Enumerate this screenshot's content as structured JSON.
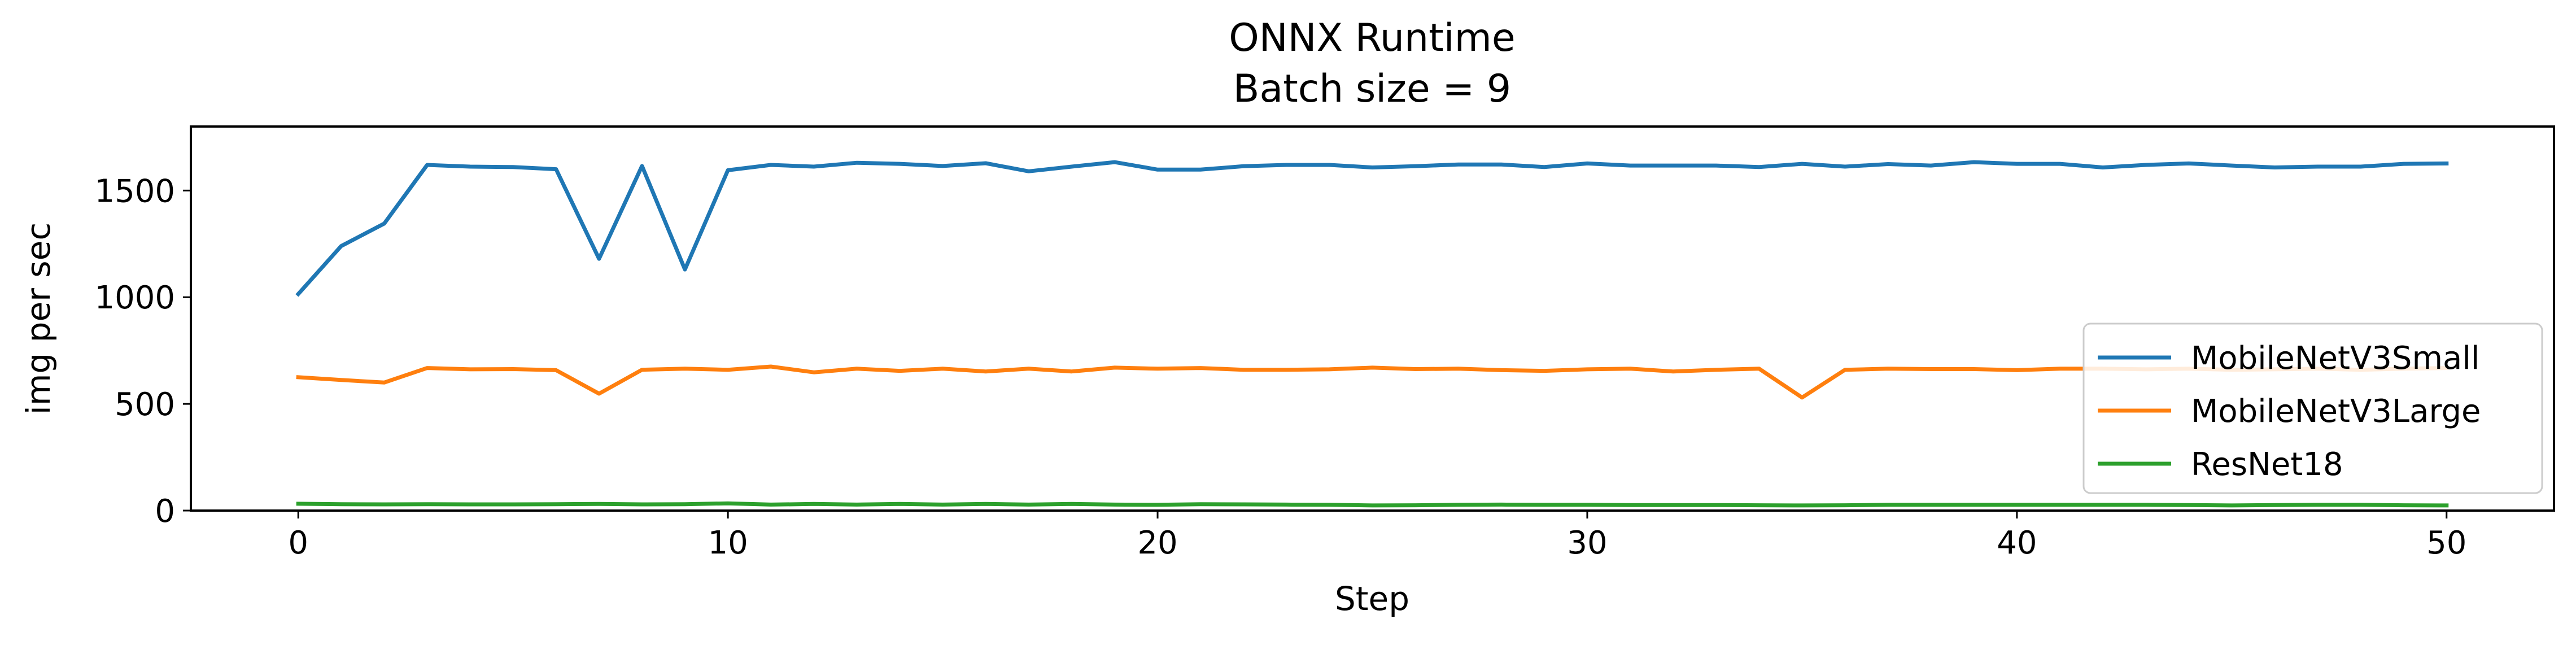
{
  "chart_data": {
    "type": "line",
    "title": "ONNX Runtime",
    "subtitle": "Batch size = 9",
    "xlabel": "Step",
    "ylabel": "img per sec",
    "xlim": [
      -2.5,
      52.5
    ],
    "ylim": [
      0,
      1800
    ],
    "xticks": [
      "0",
      "10",
      "20",
      "30",
      "40",
      "50"
    ],
    "yticks": [
      "0",
      "500",
      "1000",
      "1500"
    ],
    "grid": false,
    "legend_position": "lower-right",
    "x": [
      0,
      1,
      2,
      3,
      4,
      5,
      6,
      7,
      8,
      9,
      10,
      11,
      12,
      13,
      14,
      15,
      16,
      17,
      18,
      19,
      20,
      21,
      22,
      23,
      24,
      25,
      26,
      27,
      28,
      29,
      30,
      31,
      32,
      33,
      34,
      35,
      36,
      37,
      38,
      39,
      40,
      41,
      42,
      43,
      44,
      45,
      46,
      47,
      48,
      49,
      50
    ],
    "series": [
      {
        "name": "MobileNetV3Small",
        "color": "#1f77b4",
        "values": [
          1015,
          1240,
          1345,
          1620,
          1612,
          1610,
          1600,
          1180,
          1615,
          1130,
          1595,
          1620,
          1612,
          1630,
          1625,
          1615,
          1628,
          1590,
          1612,
          1633,
          1598,
          1598,
          1614,
          1620,
          1620,
          1608,
          1614,
          1622,
          1622,
          1610,
          1627,
          1617,
          1617,
          1617,
          1610,
          1625,
          1612,
          1624,
          1617,
          1633,
          1625,
          1625,
          1608,
          1620,
          1627,
          1617,
          1608,
          1612,
          1612,
          1625,
          1627
        ]
      },
      {
        "name": "MobileNetV3Large",
        "color": "#ff7f0e",
        "values": [
          625,
          612,
          600,
          668,
          662,
          663,
          658,
          548,
          660,
          665,
          660,
          675,
          648,
          665,
          655,
          665,
          652,
          665,
          652,
          670,
          665,
          668,
          660,
          660,
          662,
          670,
          663,
          665,
          658,
          655,
          662,
          665,
          652,
          660,
          665,
          530,
          660,
          665,
          663,
          663,
          658,
          665,
          665,
          662,
          665,
          660,
          662,
          665,
          660,
          665,
          668
        ]
      },
      {
        "name": "ResNet18",
        "color": "#2ca02c",
        "values": [
          32,
          30,
          29,
          30,
          29,
          29,
          30,
          31,
          29,
          30,
          34,
          28,
          31,
          28,
          31,
          28,
          31,
          28,
          31,
          28,
          27,
          30,
          29,
          28,
          27,
          24,
          25,
          27,
          28,
          27,
          27,
          26,
          26,
          26,
          25,
          24,
          25,
          27,
          27,
          27,
          27,
          27,
          27,
          27,
          26,
          24,
          26,
          27,
          27,
          25,
          24
        ]
      }
    ]
  }
}
